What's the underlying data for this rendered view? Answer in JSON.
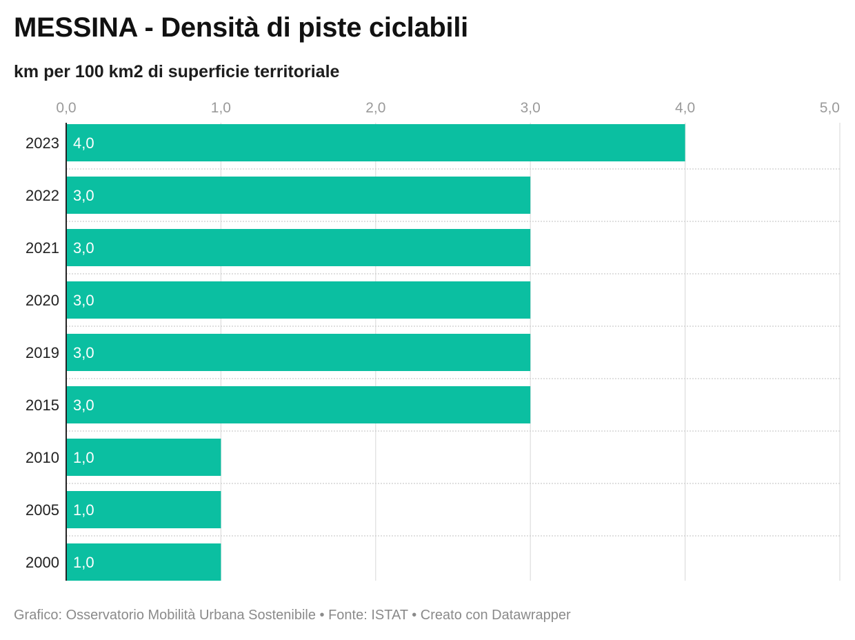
{
  "header": {
    "title": "MESSINA - Densità di piste ciclabili",
    "subtitle": "km per 100 km2 di superficie territoriale"
  },
  "footer": {
    "source_line": "Grafico: Osservatorio Mobilità Urbana Sostenibile • Fonte: ISTAT • Creato con Datawrapper"
  },
  "colors": {
    "bar": "#0bbfa1",
    "grid": "#dddddd",
    "row_separator": "#cccccc",
    "axis_line": "#222222",
    "tick_label": "#9a9a9a",
    "category_label": "#222222",
    "value_label": "#ffffff"
  },
  "chart_data": {
    "type": "bar",
    "orientation": "horizontal",
    "title": "MESSINA - Densità di piste ciclabili",
    "subtitle": "km per 100 km2 di superficie territoriale",
    "categories": [
      "2023",
      "2022",
      "2021",
      "2020",
      "2019",
      "2015",
      "2010",
      "2005",
      "2000"
    ],
    "values": [
      4.0,
      3.0,
      3.0,
      3.0,
      3.0,
      3.0,
      1.0,
      1.0,
      1.0
    ],
    "value_labels": [
      "4,0",
      "3,0",
      "3,0",
      "3,0",
      "3,0",
      "3,0",
      "1,0",
      "1,0",
      "1,0"
    ],
    "xlim": [
      0,
      5
    ],
    "x_ticks": [
      0,
      1,
      2,
      3,
      4,
      5
    ],
    "x_tick_labels": [
      "0,0",
      "1,0",
      "2,0",
      "3,0",
      "4,0",
      "5,0"
    ],
    "x_axis_position": "top",
    "grid": true,
    "legend": "none"
  }
}
